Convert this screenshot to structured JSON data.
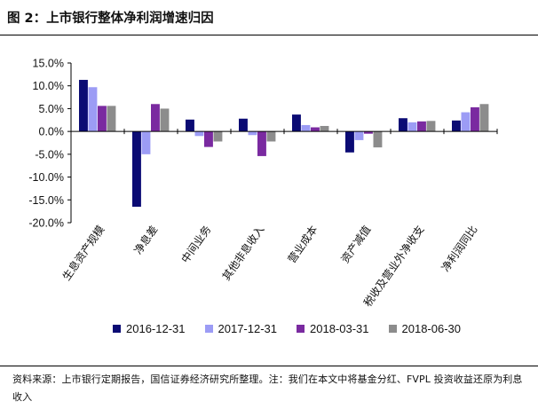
{
  "title": "图 2：上市银行整体净利润增速归因",
  "source_note": "资料来源：上市银行定期报告，国信证券经济研究所整理。注：我们在本文中将基金分红、FVPL 投资收益还原为利息收入",
  "colors": {
    "2016-12-31": "#0b0b74",
    "2017-12-31": "#9c9cf5",
    "2018-03-31": "#7a2aa0",
    "2018-06-30": "#8c8c8c"
  },
  "chart_data": {
    "type": "bar",
    "title": "",
    "xlabel": "",
    "ylabel": "",
    "ylim": [
      -20,
      15
    ],
    "yticks": [
      "15.0%",
      "10.0%",
      "5.0%",
      "0.0%",
      "-5.0%",
      "-10.0%",
      "-15.0%",
      "-20.0%"
    ],
    "ytick_values": [
      15,
      10,
      5,
      0,
      -5,
      -10,
      -15,
      -20
    ],
    "grid": false,
    "legend_position": "bottom",
    "categories": [
      "生息资产规模",
      "净息差",
      "中间业务",
      "其他非息收入",
      "营业成本",
      "资产减值",
      "税收及营业外净收支",
      "净利润同比"
    ],
    "series": [
      {
        "name": "2016-12-31",
        "values": [
          11.3,
          -16.5,
          2.6,
          2.8,
          3.7,
          -4.6,
          2.9,
          2.4
        ]
      },
      {
        "name": "2017-12-31",
        "values": [
          9.7,
          -5.0,
          -1.0,
          -0.8,
          1.4,
          -1.9,
          2.0,
          4.2
        ]
      },
      {
        "name": "2018-03-31",
        "values": [
          5.6,
          6.0,
          -3.4,
          -5.4,
          0.9,
          -0.5,
          2.2,
          5.3
        ]
      },
      {
        "name": "2018-06-30",
        "values": [
          5.6,
          5.0,
          -2.2,
          -2.2,
          1.2,
          -3.5,
          2.3,
          6.0
        ]
      }
    ]
  }
}
